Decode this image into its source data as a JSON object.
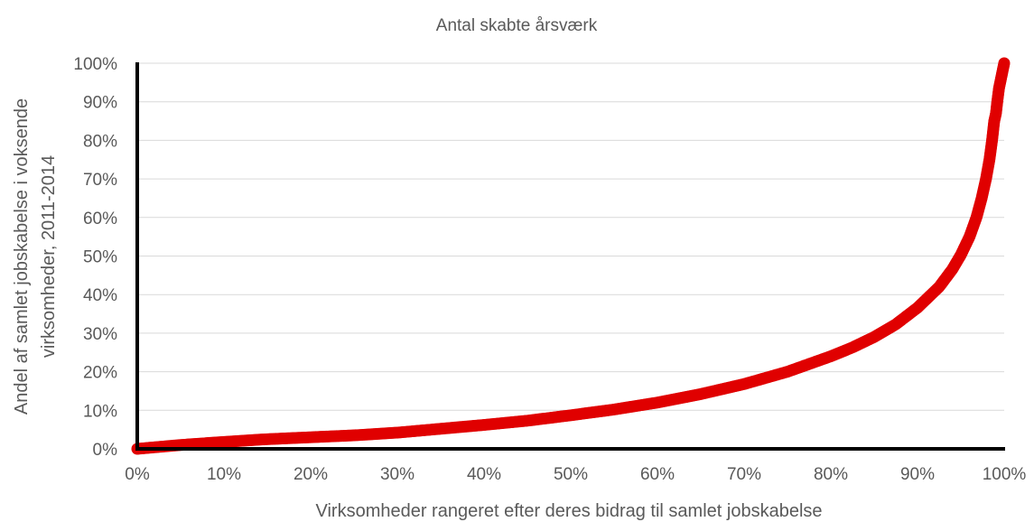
{
  "chart_data": {
    "type": "scatter",
    "title": "Antal skabte årsværk",
    "xlabel": "Virksomheder rangeret efter deres bidrag til samlet jobskabelse",
    "ylabel_lines": [
      "Andel af samlet jobskabelse i voksende",
      "virksomheder, 2011-2014"
    ],
    "xlim": [
      0,
      100
    ],
    "ylim": [
      0,
      100
    ],
    "x_ticks": [
      "0%",
      "10%",
      "20%",
      "30%",
      "40%",
      "50%",
      "60%",
      "70%",
      "80%",
      "90%",
      "100%"
    ],
    "y_ticks": [
      "0%",
      "10%",
      "20%",
      "30%",
      "40%",
      "50%",
      "60%",
      "70%",
      "80%",
      "90%",
      "100%"
    ],
    "grid": "horizontal",
    "legend": "none",
    "marker_color": "#e00000",
    "series": [
      {
        "points": [
          [
            0,
            0
          ],
          [
            5,
            1
          ],
          [
            10,
            1.8
          ],
          [
            15,
            2.5
          ],
          [
            20,
            3
          ],
          [
            25,
            3.5
          ],
          [
            30,
            4.2
          ],
          [
            35,
            5.2
          ],
          [
            40,
            6.2
          ],
          [
            45,
            7.3
          ],
          [
            50,
            8.7
          ],
          [
            55,
            10.2
          ],
          [
            60,
            12
          ],
          [
            65,
            14.2
          ],
          [
            70,
            16.8
          ],
          [
            75,
            20
          ],
          [
            80,
            24
          ],
          [
            82.5,
            26.3
          ],
          [
            85,
            29
          ],
          [
            87.5,
            32.3
          ],
          [
            90,
            36.6
          ],
          [
            92.5,
            42
          ],
          [
            94,
            46.5
          ],
          [
            95,
            50.3
          ],
          [
            96,
            55
          ],
          [
            96.8,
            60
          ],
          [
            97.4,
            65
          ],
          [
            97.9,
            70
          ],
          [
            98.3,
            75
          ],
          [
            98.6,
            80
          ],
          [
            98.85,
            85
          ],
          [
            99.05,
            87
          ],
          [
            99.2,
            90
          ],
          [
            99.4,
            93.5
          ],
          [
            100,
            100
          ]
        ]
      }
    ]
  }
}
